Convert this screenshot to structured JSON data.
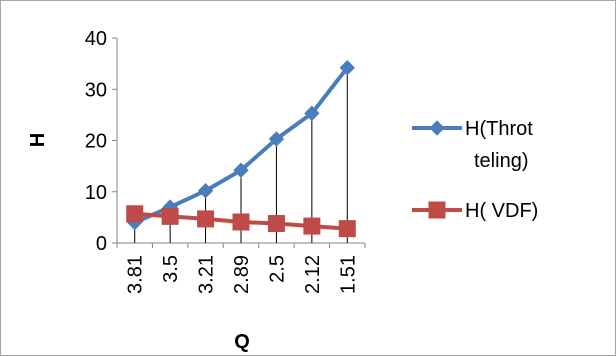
{
  "chart_data": {
    "type": "line",
    "x": [
      "3.81",
      "3.5",
      "3.21",
      "2.89",
      "2.5",
      "2.12",
      "1.51"
    ],
    "series": [
      {
        "name": "H(Throt teling)",
        "legend_lines": [
          "H(Throt",
          "teling)"
        ],
        "values": [
          4.0,
          7.0,
          10.2,
          14.2,
          20.3,
          25.3,
          34.2
        ],
        "color": "#4a7ebb",
        "marker": "diamond"
      },
      {
        "name": "H( VDF)",
        "legend_lines": [
          "H( VDF)"
        ],
        "values": [
          5.7,
          5.2,
          4.7,
          4.1,
          3.8,
          3.3,
          2.8
        ],
        "color": "#be4b48",
        "marker": "square"
      }
    ],
    "yticks": [
      0,
      10,
      20,
      30,
      40
    ],
    "ylim": [
      0,
      40
    ],
    "xlabel": "Q",
    "ylabel": "H",
    "grid": false,
    "drop_lines": true,
    "legend_position": "right"
  }
}
